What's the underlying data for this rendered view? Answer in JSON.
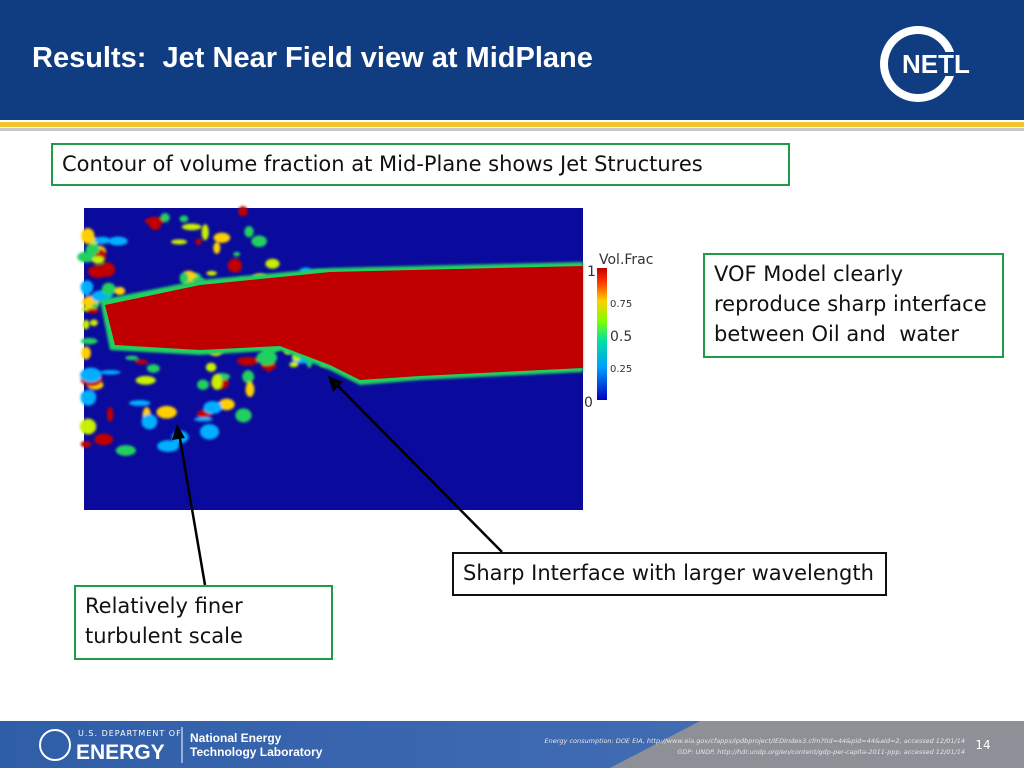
{
  "header": {
    "title": "Results:  Jet Near Field view at MidPlane",
    "logo": "NETL"
  },
  "callouts": {
    "top": "Contour of volume fraction at Mid-Plane shows Jet Structures",
    "vof": [
      "VOF Model clearly",
      "reproduce sharp interface",
      "between Oil and  water"
    ],
    "sharp": "Sharp Interface with larger wavelength",
    "finer": [
      "Relatively finer",
      "turbulent scale"
    ]
  },
  "colorbar": {
    "title": "Vol.Frac",
    "labels": [
      "1",
      "0.75",
      "0.5",
      "0.25",
      "0"
    ]
  },
  "footer": {
    "department": "U.S. DEPARTMENT OF",
    "energy": "ENERGY",
    "lab": [
      "National Energy",
      "Technology Laboratory"
    ],
    "citations": [
      "Energy consumption: DOE EIA, http://www.eia.gov/cfapps/ipdbproject/IEDIndex3.cfm?tid=44&pid=44&aid=2, accessed 12/01/14",
      "GDP: UNDP, http://hdr.undp.org/en/content/gdp-per-capita-2011-ppp, accessed 12/01/14"
    ],
    "page": "14"
  }
}
